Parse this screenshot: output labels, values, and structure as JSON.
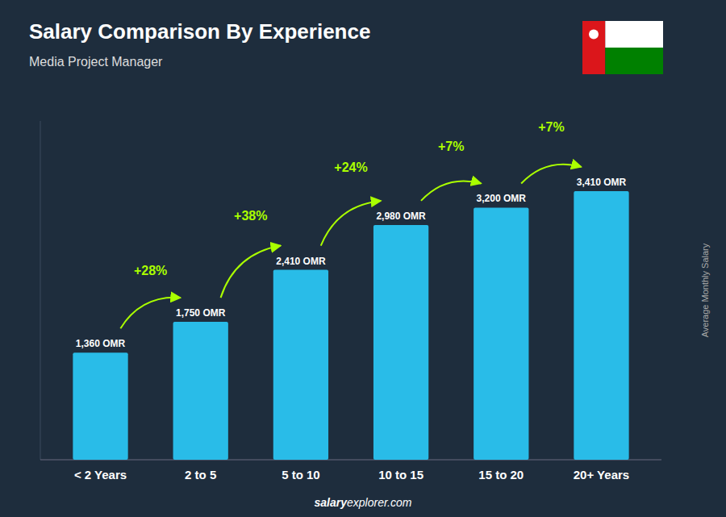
{
  "chart_data": {
    "type": "bar",
    "title": "Salary Comparison By Experience",
    "subtitle": "Media Project Manager",
    "ylabel": "Average Monthly Salary",
    "categories": [
      "< 2 Years",
      "2 to 5",
      "5 to 10",
      "10 to 15",
      "15 to 20",
      "20+ Years"
    ],
    "values": [
      1360,
      1750,
      2410,
      2980,
      3200,
      3410
    ],
    "value_labels": [
      "1,360 OMR",
      "1,750 OMR",
      "2,410 OMR",
      "2,980 OMR",
      "3,200 OMR",
      "3,410 OMR"
    ],
    "data_labels": true,
    "annotations": [
      "+28%",
      "+38%",
      "+24%",
      "+7%",
      "+7%"
    ],
    "footer": [
      "salary",
      "explorer.com"
    ],
    "color": "#29bce8",
    "ylim": [
      0,
      4300
    ],
    "tick_labels": "x",
    "grid": false
  }
}
